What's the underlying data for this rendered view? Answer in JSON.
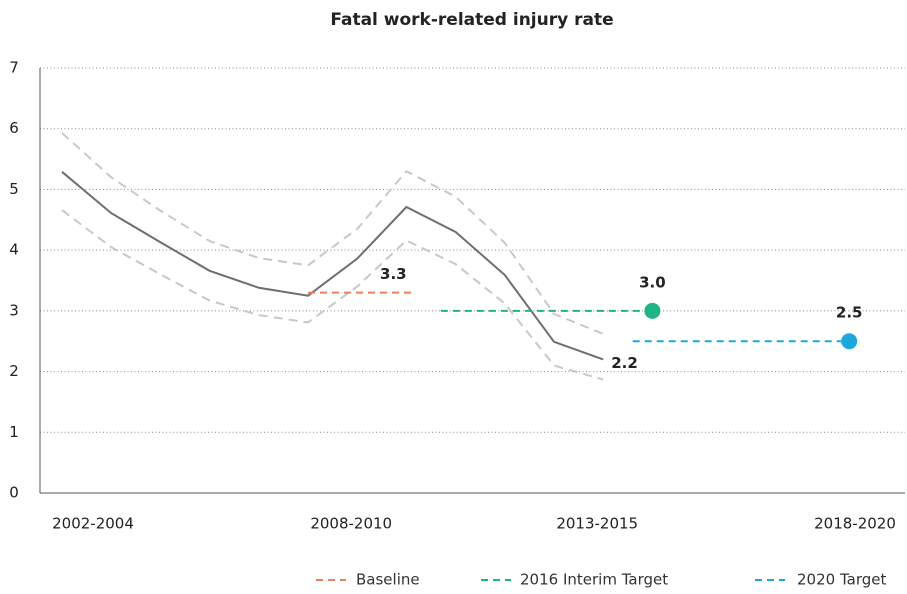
{
  "chart_data": {
    "type": "line",
    "title": "Fatal work-related injury rate",
    "categories": [
      "2002-2004",
      null,
      null,
      null,
      null,
      null,
      "2008-2010",
      null,
      null,
      null,
      null,
      "2013-2015",
      null,
      null,
      null,
      null,
      "2018-2020"
    ],
    "series": [
      {
        "color": "#6d6e71",
        "values": [
          5.29,
          4.61,
          4.13,
          3.66,
          3.38,
          3.25,
          3.86,
          4.71,
          4.3,
          3.59,
          2.49,
          2.2,
          null,
          null,
          null,
          null,
          null
        ]
      },
      {
        "color": "#c8c8c8",
        "values": [
          5.93,
          5.2,
          4.65,
          4.15,
          3.87,
          3.75,
          4.35,
          5.3,
          4.88,
          4.12,
          2.95,
          2.62,
          null,
          null,
          null,
          null,
          null
        ]
      },
      {
        "color": "#c8c8c8",
        "values": [
          4.66,
          4.05,
          3.6,
          3.17,
          2.93,
          2.81,
          3.4,
          4.16,
          3.77,
          3.12,
          2.1,
          1.87,
          null,
          null,
          null,
          null,
          null
        ]
      }
    ],
    "targets": [
      {
        "name": "Baseline",
        "color": "#e8825a",
        "value": 3.3
      },
      {
        "name": "2016 Interim Target",
        "color": "#1fb386",
        "value": 3,
        "value_label": "3.0"
      },
      {
        "name": "2020 Target",
        "color": "#1ea7dc",
        "value": 2.5
      }
    ],
    "ylim": [
      0,
      7
    ],
    "yticks": [
      0,
      1,
      2,
      3,
      4,
      5,
      6,
      7
    ],
    "grid": true
  }
}
